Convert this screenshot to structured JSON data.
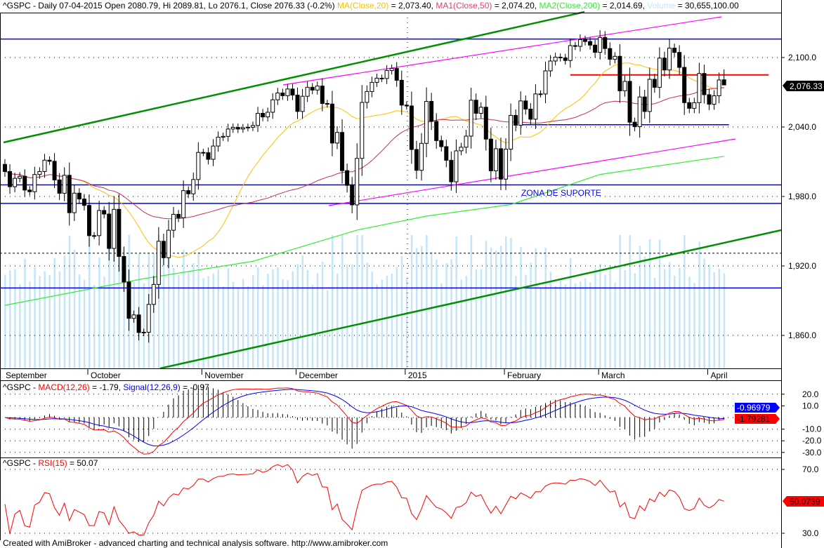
{
  "header": {
    "symbol_line": "^GSPC - Daily 07-04-2015 Open 2080.79, Hi 2089.81, Lo 2076.1, Close 2076.33 (-0.2%)",
    "ma20_label": "MA(Close,20)",
    "ma20_value": " = 2,073.40, ",
    "ma50_label": "MA1(Close,50)",
    "ma50_value": " = 2,074.20, ",
    "ma200_label": "MA2(Close,200)",
    "ma200_value": " = 2,014.69, ",
    "volume_label": "Volume",
    "volume_value": " = 30,655,100.00"
  },
  "macd_header": {
    "prefix": "^GSPC - ",
    "macd_label": "MACD(12,26)",
    "macd_value": " = -1.79, ",
    "signal_label": "Signal(12,26,9)",
    "signal_value": " = -0.97"
  },
  "rsi_header": {
    "prefix": "^GSPC - ",
    "rsi_label": "RSI(15)",
    "rsi_value": " = 50.07"
  },
  "footer": "Created with AmiBroker - advanced charting and technical analysis software. http://www.amibroker.com",
  "annotation": "ZONA DE SUPORTE",
  "last_price_tag": "2,076.33",
  "macd_tag": "-1.79281",
  "signal_tag": "-0.96979",
  "rsi_tag": "50.0739",
  "colors": {
    "ma20": "#ffc000",
    "ma50": "#e0407a",
    "ma200": "#33ee33",
    "volume": "#c4e6f8",
    "macd": "#ff0000",
    "signal": "#0000ff",
    "rsi": "#ff0000",
    "levels": "#0000ff",
    "resistance": "#ff0000"
  },
  "chart_data": [
    {
      "type": "candlestick",
      "symbol": "^GSPC",
      "x_tick_labels": [
        {
          "label": "September",
          "index": 0
        },
        {
          "label": "October",
          "index": 21
        },
        {
          "label": "November",
          "index": 44
        },
        {
          "label": "December",
          "index": 63
        },
        {
          "label": "2015",
          "index": 85
        },
        {
          "label": "February",
          "index": 105
        },
        {
          "label": "March",
          "index": 124
        },
        {
          "label": "April",
          "index": 146
        }
      ],
      "y_tick_labels": [
        "2,100.0",
        "2,040.0",
        "1,980.0",
        "1,920.0",
        "1,860.0"
      ],
      "y_ticks": [
        2100,
        2040,
        1980,
        1920,
        1860
      ],
      "ylim": [
        1831,
        2146
      ],
      "close": [
        2002.28,
        2000.72,
        1997.65,
        2007.71,
        2001.54,
        1988.44,
        1995.69,
        1997.45,
        1985.54,
        1984.13,
        1998.98,
        2001.57,
        2011.36,
        2010.4,
        1994.29,
        1982.77,
        1998.3,
        1965.99,
        1982.85,
        1977.8,
        1972.29,
        1946.16,
        1946.17,
        1967.9,
        1964.82,
        1935.1,
        1968.89,
        1928.21,
        1906.13,
        1874.74,
        1877.7,
        1862.49,
        1862.76,
        1886.76,
        1904.01,
        1941.28,
        1927.11,
        1950.82,
        1964.58,
        1961.63,
        1985.05,
        1982.3,
        1994.65,
        2018.05,
        2017.81,
        2012.1,
        2023.57,
        2031.21,
        2031.92,
        2038.26,
        2039.68,
        2038.25,
        2039.33,
        2039.82,
        2041.32,
        2051.8,
        2048.72,
        2052.75,
        2063.5,
        2069.41,
        2067.03,
        2072.83,
        2067.56,
        2053.44,
        2066.55,
        2074.33,
        2071.92,
        2075.37,
        2060.31,
        2059.82,
        2026.14,
        2035.33,
        2002.33,
        1989.63,
        1972.74,
        2012.89,
        2061.23,
        2070.65,
        2078.54,
        2082.17,
        2081.88,
        2088.77,
        2090.57,
        2080.35,
        2058.9,
        2058.2,
        2020.58,
        2002.61,
        2025.9,
        2062.14,
        2044.81,
        2028.26,
        2023.03,
        2011.27,
        1992.67,
        2019.42,
        2022.55,
        2032.12,
        2063.15,
        2051.82,
        2057.09,
        2029.55,
        2002.16,
        2021.25,
        1994.99,
        2020.85,
        2050.03,
        2041.51,
        2062.52,
        2055.47,
        2046.74,
        2068.59,
        2068.53,
        2088.48,
        2096.99,
        2100.34,
        2099.68,
        2097.45,
        2110.3,
        2109.66,
        2115.48,
        2113.86,
        2110.74,
        2104.5,
        2117.39,
        2107.78,
        2098.53,
        2101.04,
        2071.26,
        2079.43,
        2044.16,
        2040.24,
        2065.95,
        2053.4,
        2081.19,
        2074.28,
        2099.5,
        2089.27,
        2108.1,
        2104.42,
        2091.5,
        2061.05,
        2056.15,
        2061.02,
        2086.24,
        2067.89,
        2059.69,
        2066.96,
        2080.62,
        2076.33
      ],
      "last_bar": {
        "open": 2080.79,
        "high": 2089.81,
        "low": 2076.1,
        "close": 2076.33
      },
      "ma200_path": [
        [
          4,
          1886
        ],
        [
          32,
          1909
        ],
        [
          54,
          1924
        ],
        [
          75,
          1951
        ],
        [
          89,
          1963
        ],
        [
          106,
          1973
        ],
        [
          124,
          1999
        ],
        [
          149,
          2014.69
        ]
      ],
      "support_levels": [
        2116,
        1990,
        1974,
        1901
      ],
      "short_support": {
        "price": 2042,
        "from_index": 108,
        "to_index": 150
      },
      "resistance": {
        "price": 2085,
        "from_index": 118,
        "to_index": 158
      },
      "dashed_level": 1931
    },
    {
      "type": "line",
      "name": "MACD",
      "y_tick_labels": [
        "20.0",
        "10.0",
        "-10.0",
        "-20.0",
        "-30.0"
      ],
      "y_ticks": [
        20,
        10,
        -10,
        -20,
        -30
      ],
      "series": [
        {
          "name": "MACD(12,26)"
        },
        {
          "name": "Signal(12,26,9)"
        }
      ]
    },
    {
      "type": "line",
      "name": "RSI",
      "y_tick_labels": [
        "70.0",
        "30.0"
      ],
      "y_ticks": [
        70,
        30
      ],
      "series": [
        {
          "name": "RSI(15)"
        }
      ]
    }
  ]
}
